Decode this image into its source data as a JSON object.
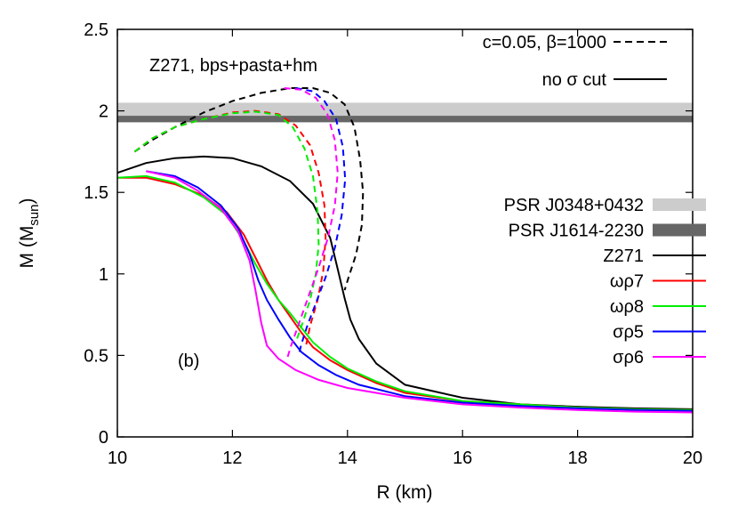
{
  "chart_data": {
    "type": "line",
    "title": "",
    "xlabel": "R (km)",
    "ylabel": {
      "main": "M (M",
      "sub": "sun",
      "close": ")"
    },
    "xlim": [
      10,
      20
    ],
    "ylim": [
      0,
      2.5
    ],
    "xticks": [
      "10",
      "12",
      "14",
      "16",
      "18",
      "20"
    ],
    "yticks": [
      "0",
      "0.5",
      "1",
      "1.5",
      "2",
      "2.5"
    ],
    "grid": false,
    "legend_placement": "right",
    "annotations": {
      "model": "Z271, bps+pasta+hm",
      "panel": "(b)"
    },
    "style_legend": [
      {
        "label": "c=0.05, β=1000",
        "dash": "dashed"
      },
      {
        "label": "no σ cut",
        "dash": "solid"
      }
    ],
    "bands": [
      {
        "name": "PSR J0348+0432",
        "y": [
          1.97,
          2.05
        ],
        "color": "#cccccc"
      },
      {
        "name": "PSR J1614-2230",
        "y": [
          1.93,
          1.97
        ],
        "color": "#666666"
      }
    ],
    "series": [
      {
        "name": "Z271",
        "color": "#000000",
        "solid": [
          [
            10.0,
            1.62
          ],
          [
            10.5,
            1.68
          ],
          [
            11.0,
            1.71
          ],
          [
            11.5,
            1.72
          ],
          [
            12.0,
            1.71
          ],
          [
            12.5,
            1.66
          ],
          [
            13.0,
            1.57
          ],
          [
            13.4,
            1.43
          ],
          [
            13.7,
            1.22
          ],
          [
            13.85,
            1.0
          ],
          [
            13.95,
            0.85
          ],
          [
            14.05,
            0.72
          ],
          [
            14.2,
            0.6
          ],
          [
            14.5,
            0.45
          ],
          [
            15.0,
            0.32
          ],
          [
            16.0,
            0.24
          ],
          [
            17.0,
            0.2
          ],
          [
            18.0,
            0.185
          ],
          [
            19.0,
            0.175
          ],
          [
            20.0,
            0.17
          ]
        ],
        "dashed": [
          [
            10.3,
            1.75
          ],
          [
            10.6,
            1.82
          ],
          [
            11.0,
            1.9
          ],
          [
            11.5,
            1.99
          ],
          [
            12.0,
            2.06
          ],
          [
            12.5,
            2.11
          ],
          [
            13.0,
            2.14
          ],
          [
            13.4,
            2.14
          ],
          [
            13.7,
            2.11
          ],
          [
            13.95,
            2.04
          ],
          [
            14.12,
            1.9
          ],
          [
            14.22,
            1.7
          ],
          [
            14.27,
            1.5
          ],
          [
            14.25,
            1.3
          ],
          [
            14.15,
            1.12
          ],
          [
            14.02,
            0.98
          ],
          [
            13.95,
            0.9
          ]
        ]
      },
      {
        "name": "ωρ7",
        "color": "#ff0000",
        "solid": [
          [
            10.0,
            1.59
          ],
          [
            10.5,
            1.59
          ],
          [
            11.0,
            1.55
          ],
          [
            11.5,
            1.48
          ],
          [
            11.9,
            1.38
          ],
          [
            12.2,
            1.24
          ],
          [
            12.4,
            1.1
          ],
          [
            12.6,
            0.96
          ],
          [
            12.8,
            0.84
          ],
          [
            13.0,
            0.74
          ],
          [
            13.2,
            0.64
          ],
          [
            13.4,
            0.55
          ],
          [
            13.7,
            0.47
          ],
          [
            14.0,
            0.41
          ],
          [
            14.5,
            0.33
          ],
          [
            15.0,
            0.27
          ],
          [
            16.0,
            0.22
          ],
          [
            17.0,
            0.2
          ],
          [
            18.0,
            0.18
          ],
          [
            19.0,
            0.17
          ],
          [
            20.0,
            0.165
          ]
        ],
        "dashed": [
          [
            10.3,
            1.75
          ],
          [
            10.6,
            1.83
          ],
          [
            11.0,
            1.9
          ],
          [
            11.5,
            1.95
          ],
          [
            12.0,
            1.99
          ],
          [
            12.4,
            2.0
          ],
          [
            12.8,
            1.98
          ],
          [
            13.1,
            1.91
          ],
          [
            13.35,
            1.79
          ],
          [
            13.5,
            1.62
          ],
          [
            13.6,
            1.42
          ],
          [
            13.62,
            1.22
          ],
          [
            13.58,
            1.02
          ],
          [
            13.48,
            0.84
          ],
          [
            13.35,
            0.68
          ],
          [
            13.28,
            0.56
          ]
        ]
      },
      {
        "name": "ωρ8",
        "color": "#00ee00",
        "solid": [
          [
            10.0,
            1.59
          ],
          [
            10.5,
            1.6
          ],
          [
            11.0,
            1.56
          ],
          [
            11.5,
            1.47
          ],
          [
            11.9,
            1.36
          ],
          [
            12.2,
            1.2
          ],
          [
            12.4,
            1.06
          ],
          [
            12.6,
            0.94
          ],
          [
            12.8,
            0.84
          ],
          [
            13.0,
            0.76
          ],
          [
            13.2,
            0.67
          ],
          [
            13.4,
            0.58
          ],
          [
            13.7,
            0.49
          ],
          [
            14.0,
            0.42
          ],
          [
            14.5,
            0.34
          ],
          [
            15.0,
            0.28
          ],
          [
            16.0,
            0.22
          ],
          [
            17.0,
            0.2
          ],
          [
            18.0,
            0.18
          ],
          [
            19.0,
            0.17
          ],
          [
            20.0,
            0.165
          ]
        ],
        "dashed": [
          [
            10.3,
            1.75
          ],
          [
            10.6,
            1.83
          ],
          [
            11.0,
            1.9
          ],
          [
            11.5,
            1.95
          ],
          [
            12.0,
            1.985
          ],
          [
            12.4,
            1.995
          ],
          [
            12.8,
            1.975
          ],
          [
            13.05,
            1.9
          ],
          [
            13.25,
            1.77
          ],
          [
            13.4,
            1.6
          ],
          [
            13.48,
            1.38
          ],
          [
            13.5,
            1.18
          ],
          [
            13.45,
            1.0
          ],
          [
            13.35,
            0.84
          ],
          [
            13.22,
            0.7
          ],
          [
            13.12,
            0.6
          ]
        ]
      },
      {
        "name": "σρ5",
        "color": "#0000ff",
        "solid": [
          [
            10.5,
            1.63
          ],
          [
            11.0,
            1.6
          ],
          [
            11.4,
            1.53
          ],
          [
            11.8,
            1.42
          ],
          [
            12.1,
            1.28
          ],
          [
            12.3,
            1.12
          ],
          [
            12.45,
            0.96
          ],
          [
            12.6,
            0.84
          ],
          [
            12.8,
            0.72
          ],
          [
            13.0,
            0.61
          ],
          [
            13.2,
            0.52
          ],
          [
            13.5,
            0.44
          ],
          [
            13.8,
            0.38
          ],
          [
            14.2,
            0.32
          ],
          [
            15.0,
            0.25
          ],
          [
            16.0,
            0.21
          ],
          [
            17.0,
            0.19
          ],
          [
            18.0,
            0.175
          ],
          [
            19.0,
            0.165
          ],
          [
            20.0,
            0.16
          ]
        ],
        "dashed": [
          [
            13.1,
            2.14
          ],
          [
            13.4,
            2.12
          ],
          [
            13.6,
            2.06
          ],
          [
            13.8,
            1.95
          ],
          [
            13.92,
            1.78
          ],
          [
            13.96,
            1.58
          ],
          [
            13.9,
            1.36
          ],
          [
            13.78,
            1.16
          ],
          [
            13.62,
            0.98
          ],
          [
            13.45,
            0.82
          ],
          [
            13.3,
            0.68
          ],
          [
            13.2,
            0.57
          ],
          [
            13.15,
            0.5
          ]
        ]
      },
      {
        "name": "σρ6",
        "color": "#ff00ff",
        "solid": [
          [
            10.5,
            1.63
          ],
          [
            11.0,
            1.59
          ],
          [
            11.4,
            1.51
          ],
          [
            11.8,
            1.4
          ],
          [
            12.1,
            1.26
          ],
          [
            12.3,
            1.08
          ],
          [
            12.4,
            0.9
          ],
          [
            12.5,
            0.7
          ],
          [
            12.6,
            0.56
          ],
          [
            12.8,
            0.48
          ],
          [
            13.1,
            0.41
          ],
          [
            13.5,
            0.35
          ],
          [
            14.0,
            0.3
          ],
          [
            15.0,
            0.24
          ],
          [
            16.0,
            0.2
          ],
          [
            17.0,
            0.18
          ],
          [
            18.0,
            0.165
          ],
          [
            19.0,
            0.155
          ],
          [
            20.0,
            0.15
          ]
        ],
        "dashed": [
          [
            12.9,
            2.14
          ],
          [
            13.2,
            2.13
          ],
          [
            13.45,
            2.08
          ],
          [
            13.65,
            1.98
          ],
          [
            13.78,
            1.82
          ],
          [
            13.83,
            1.62
          ],
          [
            13.78,
            1.42
          ],
          [
            13.66,
            1.22
          ],
          [
            13.5,
            1.04
          ],
          [
            13.32,
            0.86
          ],
          [
            13.16,
            0.7
          ],
          [
            13.02,
            0.56
          ],
          [
            12.95,
            0.48
          ]
        ]
      }
    ]
  }
}
